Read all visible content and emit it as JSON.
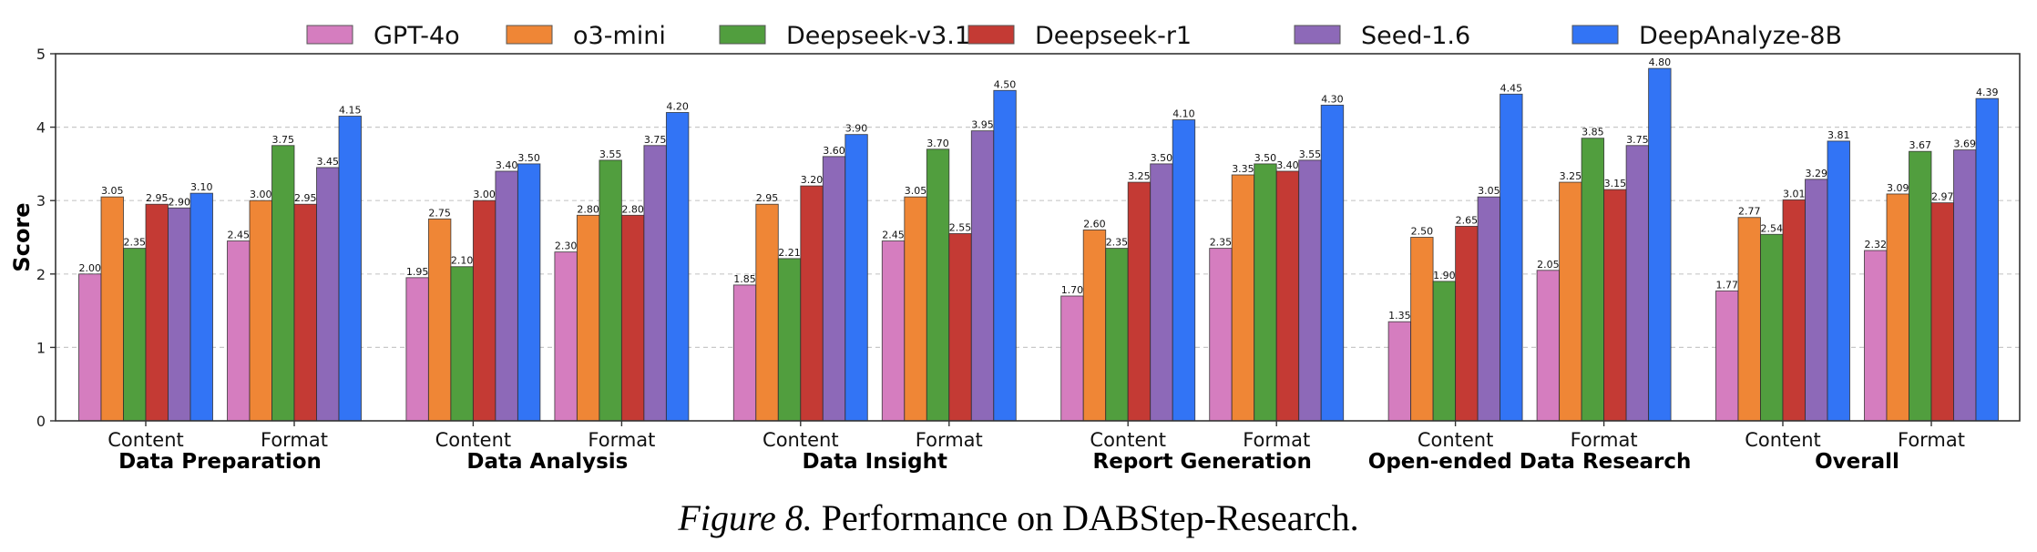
{
  "chart_data": {
    "type": "bar",
    "title": "",
    "xlabel": "",
    "ylabel": "Score",
    "ylim": [
      0,
      5
    ],
    "yticks": [
      "0",
      "1",
      "2",
      "3",
      "4",
      "5"
    ],
    "grid": "horizontal dashed",
    "legend_position": "top-center",
    "groups": [
      {
        "name": "Data Preparation",
        "subcategories": [
          "Content",
          "Format"
        ]
      },
      {
        "name": "Data Analysis",
        "subcategories": [
          "Content",
          "Format"
        ]
      },
      {
        "name": "Data Insight",
        "subcategories": [
          "Content",
          "Format"
        ]
      },
      {
        "name": "Report Generation",
        "subcategories": [
          "Content",
          "Format"
        ]
      },
      {
        "name": "Open-ended Data Research",
        "subcategories": [
          "Content",
          "Format"
        ]
      },
      {
        "name": "Overall",
        "subcategories": [
          "Content",
          "Format"
        ]
      }
    ],
    "categories": [
      "Data Preparation / Content",
      "Data Preparation / Format",
      "Data Analysis / Content",
      "Data Analysis / Format",
      "Data Insight / Content",
      "Data Insight / Format",
      "Report Generation / Content",
      "Report Generation / Format",
      "Open-ended Data Research / Content",
      "Open-ended Data Research / Format",
      "Overall / Content",
      "Overall / Format"
    ],
    "series": [
      {
        "name": "GPT-4o",
        "color": "#d57dbf",
        "values": [
          2.0,
          2.45,
          1.95,
          2.3,
          1.85,
          2.45,
          1.7,
          2.35,
          1.35,
          2.05,
          1.77,
          2.32
        ]
      },
      {
        "name": "o3-mini",
        "color": "#ef8636",
        "values": [
          3.05,
          3.0,
          2.75,
          2.8,
          2.95,
          3.05,
          2.6,
          3.35,
          2.5,
          3.25,
          2.77,
          3.09
        ]
      },
      {
        "name": "Deepseek-v3.1",
        "color": "#519e3e",
        "values": [
          2.35,
          3.75,
          2.1,
          3.55,
          2.21,
          3.7,
          2.35,
          3.5,
          1.9,
          3.85,
          2.54,
          3.67
        ]
      },
      {
        "name": "Deepseek-r1",
        "color": "#c43a34",
        "values": [
          2.95,
          2.95,
          3.0,
          2.8,
          3.2,
          2.55,
          3.25,
          3.4,
          2.65,
          3.15,
          3.01,
          2.97
        ]
      },
      {
        "name": "Seed-1.6",
        "color": "#8d69b8",
        "values": [
          2.9,
          3.45,
          3.4,
          3.75,
          3.6,
          3.95,
          3.5,
          3.55,
          3.05,
          3.75,
          3.29,
          3.69
        ]
      },
      {
        "name": "DeepAnalyze-8B",
        "color": "#3274f5",
        "values": [
          3.1,
          4.15,
          3.5,
          4.2,
          3.9,
          4.5,
          4.1,
          4.3,
          4.45,
          4.8,
          3.81,
          4.39
        ]
      }
    ]
  },
  "caption": {
    "figure_label": "Figure 8.",
    "text": " Performance on DABStep-Research."
  }
}
